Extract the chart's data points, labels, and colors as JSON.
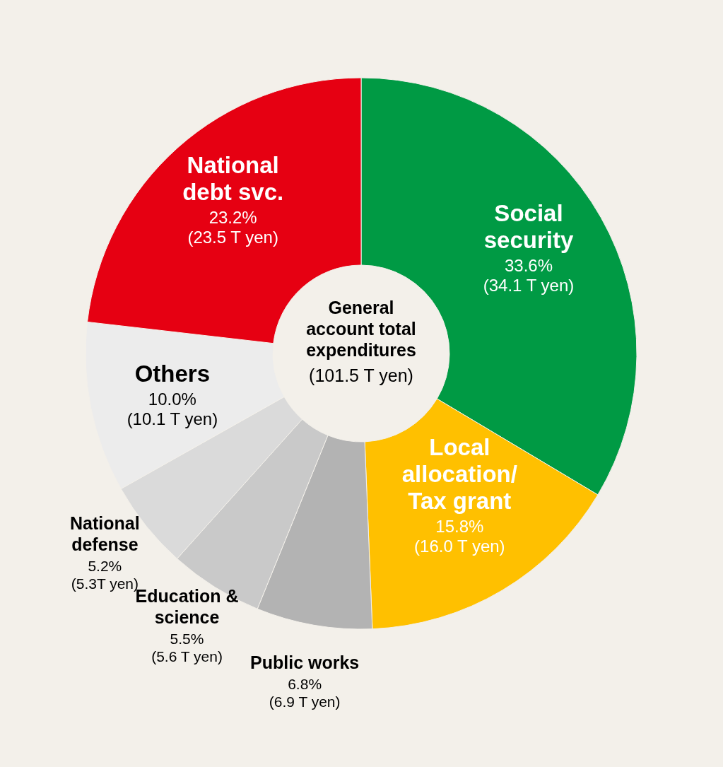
{
  "chart_data": {
    "type": "donut",
    "title": "General account total expenditures",
    "subtitle": "(101.5 T yen)",
    "categories": [
      "Social security",
      "Local allocation/ Tax grant",
      "Public works",
      "Education & science",
      "National defense",
      "Others",
      "National debt svc."
    ],
    "values": [
      33.6,
      15.8,
      6.8,
      5.5,
      5.2,
      10.0,
      23.2
    ],
    "colors": [
      "#009a44",
      "#ffc000",
      "#b3b3b3",
      "#c9c9c9",
      "#dadada",
      "#ececec",
      "#e60012"
    ],
    "value_labels": [
      "33.6%\n(34.1 T yen)",
      "15.8%\n(16.0 T yen)",
      "6.8%\n(6.9 T yen)",
      "5.5%\n(5.6 T yen)",
      "5.2%\n(5.3T yen)",
      "10.0%\n(10.1 T yen)",
      "23.2%\n(23.5 T yen)"
    ],
    "data_labels": false
  }
}
